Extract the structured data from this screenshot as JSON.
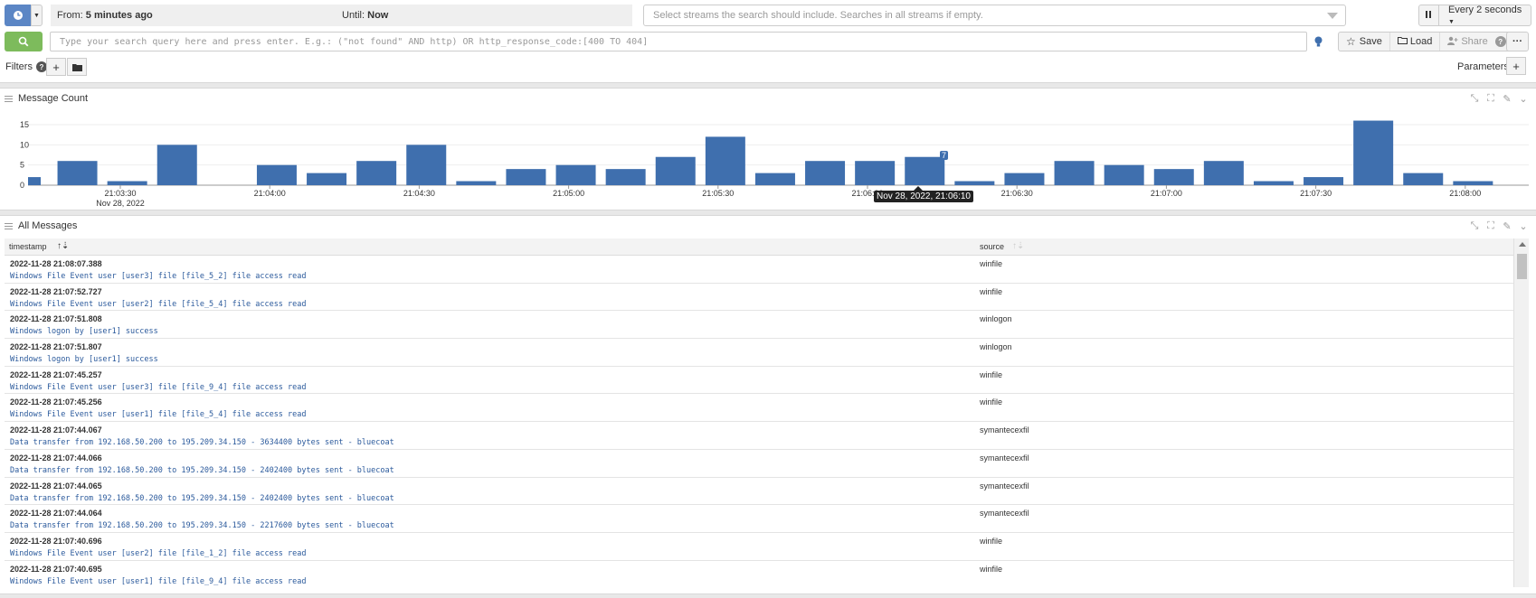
{
  "header": {
    "from_prefix": "From:",
    "from_value": "5 minutes ago",
    "until_prefix": "Until:",
    "until_value": "Now",
    "streams_placeholder": "Select streams the search should include. Searches in all streams if empty.",
    "refresh_label": "Every 2 seconds",
    "query_placeholder": "Type your search query here and press enter. E.g.: (\"not found\" AND http) OR http_response_code:[400 TO 404]",
    "save_label": "Save",
    "load_label": "Load",
    "share_label": "Share",
    "more_label": "···",
    "filters_label": "Filters",
    "parameters_label": "Parameters"
  },
  "message_count_panel": {
    "title": "Message Count",
    "tooltip": "Nov 28, 2022, 21:06:10"
  },
  "chart_data": {
    "type": "bar",
    "title": "",
    "xlabel": "",
    "ylabel": "",
    "ylim": [
      0,
      16
    ],
    "y_ticks": [
      "0",
      "5",
      "10",
      "15"
    ],
    "x_tick_labels": [
      "21:03:30",
      "21:04:00",
      "21:04:30",
      "21:05:00",
      "21:05:30",
      "21:06:00",
      "21:06:30",
      "21:07:00",
      "21:07:30",
      "21:08:00"
    ],
    "x_date_label": "Nov 28, 2022",
    "categories": [
      "21:03:20",
      "21:03:25",
      "21:03:35",
      "21:03:45",
      "21:03:55",
      "21:04:05",
      "21:04:15",
      "21:04:25",
      "21:04:35",
      "21:04:45",
      "21:04:55",
      "21:05:05",
      "21:05:15",
      "21:05:25",
      "21:05:35",
      "21:05:45",
      "21:05:55",
      "21:06:05",
      "21:06:15",
      "21:06:25",
      "21:06:35",
      "21:06:45",
      "21:06:55",
      "21:07:05",
      "21:07:15",
      "21:07:25",
      "21:07:35",
      "21:07:45",
      "21:07:55",
      "21:08:05"
    ],
    "values": [
      2,
      6,
      1,
      10,
      0,
      5,
      3,
      6,
      10,
      1,
      4,
      5,
      4,
      7,
      12,
      3,
      6,
      6,
      7,
      1,
      3,
      6,
      5,
      4,
      6,
      1,
      2,
      16,
      3,
      1
    ],
    "highlighted_value": "7"
  },
  "messages_panel": {
    "title": "All Messages",
    "columns": [
      "timestamp",
      "source"
    ],
    "rows": [
      {
        "timestamp": "2022-11-28 21:08:07.388",
        "message": "Windows File Event user [user3] file [file_5_2] file access read",
        "source": "winfile"
      },
      {
        "timestamp": "2022-11-28 21:07:52.727",
        "message": "Windows File Event user [user2] file [file_5_4] file access read",
        "source": "winfile"
      },
      {
        "timestamp": "2022-11-28 21:07:51.808",
        "message": "Windows logon by [user1] success",
        "source": "winlogon"
      },
      {
        "timestamp": "2022-11-28 21:07:51.807",
        "message": "Windows logon by [user1] success",
        "source": "winlogon"
      },
      {
        "timestamp": "2022-11-28 21:07:45.257",
        "message": "Windows File Event user [user3] file [file_9_4] file access read",
        "source": "winfile"
      },
      {
        "timestamp": "2022-11-28 21:07:45.256",
        "message": "Windows File Event user [user1] file [file_5_4] file access read",
        "source": "winfile"
      },
      {
        "timestamp": "2022-11-28 21:07:44.067",
        "message": "Data transfer from 192.168.50.200 to 195.209.34.150 - 3634400 bytes sent - bluecoat",
        "source": "symantecexfil"
      },
      {
        "timestamp": "2022-11-28 21:07:44.066",
        "message": "Data transfer from 192.168.50.200 to 195.209.34.150 - 2402400 bytes sent - bluecoat",
        "source": "symantecexfil"
      },
      {
        "timestamp": "2022-11-28 21:07:44.065",
        "message": "Data transfer from 192.168.50.200 to 195.209.34.150 - 2402400 bytes sent - bluecoat",
        "source": "symantecexfil"
      },
      {
        "timestamp": "2022-11-28 21:07:44.064",
        "message": "Data transfer from 192.168.50.200 to 195.209.34.150 - 2217600 bytes sent - bluecoat",
        "source": "symantecexfil"
      },
      {
        "timestamp": "2022-11-28 21:07:40.696",
        "message": "Windows File Event user [user2] file [file_1_2] file access read",
        "source": "winfile"
      },
      {
        "timestamp": "2022-11-28 21:07:40.695",
        "message": "Windows File Event user [user1] file [file_9_4] file access read",
        "source": "winfile"
      }
    ]
  },
  "colors": {
    "bar": "#3f6fae",
    "search_button": "#7dbb5c",
    "time_button": "#5b86c5",
    "message_text": "#2b5a9c"
  }
}
